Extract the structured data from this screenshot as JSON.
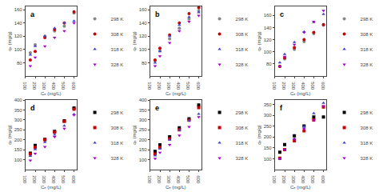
{
  "chart_data": [
    {
      "type": "scatter",
      "title": "a",
      "x_label": "Cₑ (mg/L)",
      "y_label": "qₑ (mg/g)",
      "x": [
        150,
        200,
        300,
        400,
        500,
        600
      ],
      "xlim": [
        100,
        625
      ],
      "xticks": [
        100,
        200,
        300,
        400,
        500,
        600
      ],
      "ylim": [
        60,
        165
      ],
      "yticks": [
        80,
        100,
        120,
        140,
        160
      ],
      "grid": false,
      "legend": "lower right",
      "series": [
        {
          "name": "298 K",
          "color": "#888888",
          "marker": "circle",
          "values": [
            95,
            107,
            120,
            128,
            135,
            155
          ]
        },
        {
          "name": "308 K",
          "color": "#cc0000",
          "marker": "circle",
          "values": [
            84,
            97,
            118,
            130,
            140,
            157
          ]
        },
        {
          "name": "318 K",
          "color": "#4444cc",
          "marker": "triangle-up",
          "values": [
            92,
            105,
            120,
            132,
            140,
            143
          ]
        },
        {
          "name": "328 K",
          "color": "#aa00cc",
          "marker": "triangle-down",
          "values": [
            75,
            88,
            105,
            118,
            128,
            140
          ]
        }
      ]
    },
    {
      "type": "scatter",
      "title": "b",
      "x_label": "Cₑ (mg/L)",
      "y_label": "qₑ (mg/g)",
      "x": [
        150,
        200,
        300,
        400,
        500,
        600
      ],
      "xlim": [
        100,
        625
      ],
      "xticks": [
        100,
        200,
        300,
        400,
        500,
        600
      ],
      "ylim": [
        60,
        165
      ],
      "yticks": [
        80,
        100,
        120,
        140,
        160
      ],
      "grid": false,
      "legend": "lower right",
      "series": [
        {
          "name": "298 K",
          "color": "#888888",
          "marker": "circle",
          "values": [
            83,
            98,
            116,
            132,
            146,
            158
          ]
        },
        {
          "name": "308 K",
          "color": "#cc0000",
          "marker": "circle",
          "values": [
            84,
            102,
            122,
            140,
            154,
            163
          ]
        },
        {
          "name": "318 K",
          "color": "#4444cc",
          "marker": "triangle-up",
          "values": [
            80,
            97,
            120,
            137,
            149,
            156
          ]
        },
        {
          "name": "328 K",
          "color": "#aa00cc",
          "marker": "triangle-down",
          "values": [
            75,
            90,
            110,
            128,
            142,
            151
          ]
        }
      ]
    },
    {
      "type": "scatter",
      "title": "c",
      "x_label": "Cₑ (mg/L)",
      "y_label": "qₑ (mg/g)",
      "x": [
        150,
        200,
        300,
        400,
        500,
        600
      ],
      "xlim": [
        100,
        625
      ],
      "xticks": [
        100,
        200,
        300,
        400,
        500,
        600
      ],
      "ylim": [
        60,
        175
      ],
      "yticks": [
        80,
        100,
        120,
        140,
        160
      ],
      "grid": false,
      "legend": "lower right",
      "series": [
        {
          "name": "298 K",
          "color": "#888888",
          "marker": "circle",
          "values": [
            76,
            88,
            104,
            117,
            130,
            144
          ]
        },
        {
          "name": "308 K",
          "color": "#cc0000",
          "marker": "circle",
          "values": [
            76,
            90,
            107,
            120,
            132,
            145
          ]
        },
        {
          "name": "318 K",
          "color": "#4444cc",
          "marker": "triangle-up",
          "values": [
            82,
            96,
            116,
            133,
            149,
            162
          ]
        },
        {
          "name": "328 K",
          "color": "#aa00cc",
          "marker": "triangle-down",
          "values": [
            76,
            92,
            112,
            132,
            150,
            168
          ]
        }
      ]
    },
    {
      "type": "scatter",
      "title": "d",
      "x_label": "Cₑ (mg/L)",
      "y_label": "qₑ (mg/g)",
      "x": [
        150,
        200,
        300,
        400,
        500,
        600
      ],
      "xlim": [
        100,
        625
      ],
      "xticks": [
        100,
        200,
        300,
        400,
        500,
        600
      ],
      "ylim": [
        50,
        400
      ],
      "yticks": [
        100,
        150,
        200,
        250,
        300,
        350,
        400
      ],
      "grid": false,
      "legend": "lower right",
      "series": [
        {
          "name": "298 K",
          "color": "#000000",
          "marker": "square",
          "values": [
            132,
            172,
            202,
            242,
            295,
            360
          ]
        },
        {
          "name": "308 K",
          "color": "#cc0000",
          "marker": "square",
          "values": [
            128,
            162,
            200,
            238,
            292,
            354
          ]
        },
        {
          "name": "318 K",
          "color": "#4444cc",
          "marker": "triangle-up",
          "values": [
            118,
            152,
            188,
            225,
            270,
            328
          ]
        },
        {
          "name": "328 K",
          "color": "#aa00cc",
          "marker": "triangle-down",
          "values": [
            96,
            130,
            165,
            215,
            256,
            325
          ]
        }
      ]
    },
    {
      "type": "scatter",
      "title": "e",
      "x_label": "Cₑ (mg/L)",
      "y_label": "qₑ (mg/g)",
      "x": [
        150,
        200,
        300,
        400,
        500,
        600
      ],
      "xlim": [
        100,
        625
      ],
      "xticks": [
        100,
        200,
        300,
        400,
        500,
        600
      ],
      "ylim": [
        50,
        400
      ],
      "yticks": [
        100,
        150,
        200,
        250,
        300,
        350,
        400
      ],
      "grid": false,
      "legend": "lower right",
      "series": [
        {
          "name": "298 K",
          "color": "#000000",
          "marker": "square",
          "values": [
            142,
            175,
            215,
            260,
            305,
            375
          ]
        },
        {
          "name": "308 K",
          "color": "#cc0000",
          "marker": "square",
          "values": [
            128,
            162,
            205,
            250,
            298,
            362
          ]
        },
        {
          "name": "318 K",
          "color": "#4444cc",
          "marker": "triangle-up",
          "values": [
            120,
            155,
            200,
            248,
            295,
            330
          ]
        },
        {
          "name": "328 K",
          "color": "#aa00cc",
          "marker": "triangle-down",
          "values": [
            105,
            135,
            175,
            222,
            265,
            315
          ]
        }
      ]
    },
    {
      "type": "scatter",
      "title": "f",
      "x_label": "Cₑ (mg/L)",
      "y_label": "qₑ (mg/g)",
      "x": [
        150,
        200,
        300,
        400,
        500,
        600
      ],
      "xlim": [
        100,
        625
      ],
      "xticks": [
        100,
        200,
        300,
        400,
        500,
        600
      ],
      "ylim": [
        50,
        370
      ],
      "yticks": [
        100,
        150,
        200,
        250,
        300,
        350
      ],
      "grid": false,
      "legend": "lower right",
      "series": [
        {
          "name": "298 K",
          "color": "#000000",
          "marker": "square",
          "values": [
            130,
            165,
            205,
            250,
            292,
            292
          ]
        },
        {
          "name": "308 K",
          "color": "#cc0000",
          "marker": "square",
          "values": [
            102,
            142,
            182,
            228,
            278,
            338
          ]
        },
        {
          "name": "318 K",
          "color": "#4444cc",
          "marker": "triangle-up",
          "values": [
            100,
            142,
            192,
            248,
            308,
            356
          ]
        },
        {
          "name": "328 K",
          "color": "#aa00cc",
          "marker": "triangle-down",
          "values": [
            100,
            140,
            190,
            238,
            278,
            342
          ]
        }
      ]
    }
  ]
}
